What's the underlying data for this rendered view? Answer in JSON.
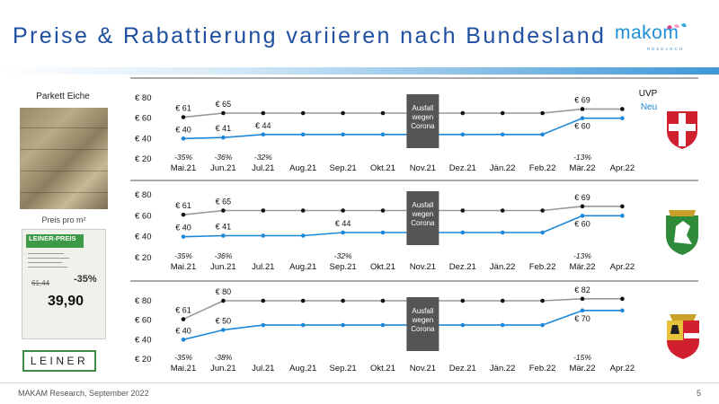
{
  "page": {
    "title": "Preise & Rabattierung variieren nach Bundesland",
    "logo_word": "makom",
    "logo_sub": "RESEARCH",
    "product_label": "Parkett Eiche",
    "price_caption": "Preis pro m²",
    "tag_header": "LEINER-PREIS",
    "tag_old_price": "61,44",
    "tag_discount": "-35%",
    "tag_price": "39,90",
    "retailer": "LEINER",
    "footer": "MAKAM Research, September 2022",
    "page_number": "5",
    "uvp_label": "UVP",
    "neu_label": "Neu",
    "annotation_lines": [
      "Ausfall",
      "wegen",
      "Corona"
    ]
  },
  "colors": {
    "title": "#1f4fa0",
    "uvp_series": "#111111",
    "uvp_line": "#999999",
    "neu_series": "#1e88d8",
    "annotation_box": "#555555",
    "accent_bar": "#3f97d8"
  },
  "chart_data": [
    {
      "type": "line",
      "region": "Wien",
      "emblem_icon": "vienna-coat-of-arms-icon",
      "categories": [
        "Mai.21",
        "Jun.21",
        "Jul.21",
        "Aug.21",
        "Sep.21",
        "Okt.21",
        "Nov.21",
        "Dez.21",
        "Jän.22",
        "Feb.22",
        "Mär.22",
        "Apr.22"
      ],
      "y_ticks": [
        "€ 20",
        "€ 40",
        "€ 60",
        "€ 80"
      ],
      "ylim": [
        20,
        80
      ],
      "series": [
        {
          "name": "UVP",
          "values": [
            61,
            65,
            65,
            65,
            65,
            65,
            null,
            65,
            65,
            65,
            69,
            69
          ]
        },
        {
          "name": "Neu",
          "values": [
            40,
            41,
            44,
            44,
            44,
            44,
            null,
            44,
            44,
            44,
            60,
            60
          ]
        }
      ],
      "uvp_labels": [
        {
          "i": 0,
          "text": "€ 61"
        },
        {
          "i": 1,
          "text": "€ 65"
        },
        {
          "i": 10,
          "text": "€ 69"
        }
      ],
      "neu_labels": [
        {
          "i": 0,
          "text": "€ 40"
        },
        {
          "i": 1,
          "text": "€ 41"
        },
        {
          "i": 2,
          "text": "€ 44"
        },
        {
          "i": 10,
          "text": "€ 60"
        }
      ],
      "discounts": [
        {
          "i": 0,
          "text": "-35%"
        },
        {
          "i": 1,
          "text": "-36%"
        },
        {
          "i": 2,
          "text": "-32%"
        },
        {
          "i": 10,
          "text": "-13%"
        }
      ],
      "gap_index": 6
    },
    {
      "type": "line",
      "region": "Steiermark",
      "emblem_icon": "styria-coat-of-arms-icon",
      "categories": [
        "Mai.21",
        "Jun.21",
        "Jul.21",
        "Aug.21",
        "Sep.21",
        "Okt.21",
        "Nov.21",
        "Dez.21",
        "Jän.22",
        "Feb.22",
        "Mär.22",
        "Apr.22"
      ],
      "y_ticks": [
        "€ 20",
        "€ 40",
        "€ 60",
        "€ 80"
      ],
      "ylim": [
        20,
        80
      ],
      "series": [
        {
          "name": "UVP",
          "values": [
            61,
            65,
            65,
            65,
            65,
            65,
            null,
            65,
            65,
            65,
            69,
            69
          ]
        },
        {
          "name": "Neu",
          "values": [
            40,
            41,
            41,
            41,
            44,
            44,
            null,
            44,
            44,
            44,
            60,
            60
          ]
        }
      ],
      "uvp_labels": [
        {
          "i": 0,
          "text": "€ 61"
        },
        {
          "i": 1,
          "text": "€ 65"
        },
        {
          "i": 10,
          "text": "€ 69"
        }
      ],
      "neu_labels": [
        {
          "i": 0,
          "text": "€ 40"
        },
        {
          "i": 1,
          "text": "€ 41"
        },
        {
          "i": 4,
          "text": "€ 44"
        },
        {
          "i": 10,
          "text": "€ 60"
        }
      ],
      "discounts": [
        {
          "i": 0,
          "text": "-35%"
        },
        {
          "i": 1,
          "text": "-36%"
        },
        {
          "i": 4,
          "text": "-32%"
        },
        {
          "i": 10,
          "text": "-13%"
        }
      ],
      "gap_index": 6
    },
    {
      "type": "line",
      "region": "Salzburg",
      "emblem_icon": "salzburg-coat-of-arms-icon",
      "categories": [
        "Mai.21",
        "Jun.21",
        "Jul.21",
        "Aug.21",
        "Sep.21",
        "Okt.21",
        "Nov.21",
        "Dez.21",
        "Jän.22",
        "Feb.22",
        "Mär.22",
        "Apr.22"
      ],
      "y_ticks": [
        "€ 20",
        "€ 40",
        "€ 60",
        "€ 80"
      ],
      "ylim": [
        20,
        80
      ],
      "series": [
        {
          "name": "UVP",
          "values": [
            61,
            80,
            80,
            80,
            80,
            80,
            null,
            80,
            80,
            80,
            82,
            82
          ]
        },
        {
          "name": "Neu",
          "values": [
            40,
            50,
            55,
            55,
            55,
            55,
            null,
            55,
            55,
            55,
            70,
            70
          ]
        }
      ],
      "uvp_labels": [
        {
          "i": 0,
          "text": "€ 61"
        },
        {
          "i": 1,
          "text": "€ 80"
        },
        {
          "i": 10,
          "text": "€ 82"
        }
      ],
      "neu_labels": [
        {
          "i": 0,
          "text": "€ 40"
        },
        {
          "i": 1,
          "text": "€ 50"
        },
        {
          "i": 10,
          "text": "€ 70"
        }
      ],
      "discounts": [
        {
          "i": 0,
          "text": "-35%"
        },
        {
          "i": 1,
          "text": "-38%"
        },
        {
          "i": 10,
          "text": "-15%"
        }
      ],
      "gap_index": 6
    }
  ]
}
